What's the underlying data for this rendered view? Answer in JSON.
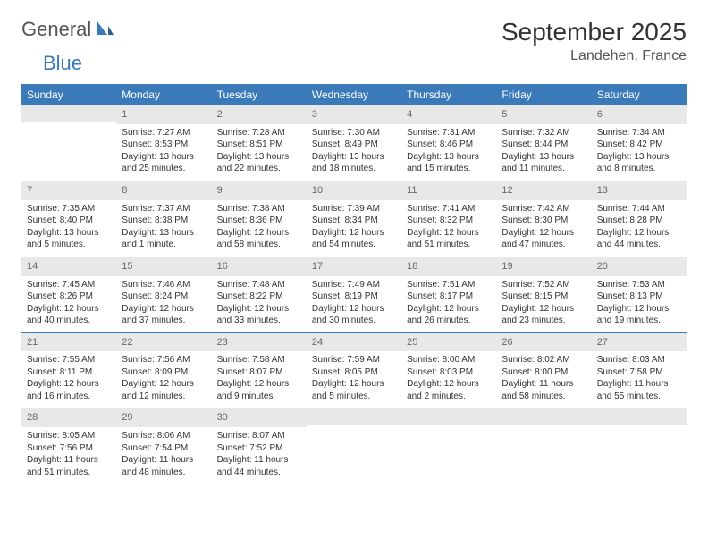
{
  "logo": {
    "general": "General",
    "blue": "Blue"
  },
  "title": "September 2025",
  "location": "Landehen, France",
  "colors": {
    "header_bg": "#3a7ab8",
    "header_fg": "#ffffff",
    "daynum_bg": "#e8e8e8",
    "daynum_fg": "#666666",
    "text": "#333333",
    "rule": "#3a7ab8"
  },
  "weekdays": [
    "Sunday",
    "Monday",
    "Tuesday",
    "Wednesday",
    "Thursday",
    "Friday",
    "Saturday"
  ],
  "weeks": [
    [
      {
        "n": "",
        "sr": "",
        "ss": "",
        "dl": ""
      },
      {
        "n": "1",
        "sr": "Sunrise: 7:27 AM",
        "ss": "Sunset: 8:53 PM",
        "dl": "Daylight: 13 hours and 25 minutes."
      },
      {
        "n": "2",
        "sr": "Sunrise: 7:28 AM",
        "ss": "Sunset: 8:51 PM",
        "dl": "Daylight: 13 hours and 22 minutes."
      },
      {
        "n": "3",
        "sr": "Sunrise: 7:30 AM",
        "ss": "Sunset: 8:49 PM",
        "dl": "Daylight: 13 hours and 18 minutes."
      },
      {
        "n": "4",
        "sr": "Sunrise: 7:31 AM",
        "ss": "Sunset: 8:46 PM",
        "dl": "Daylight: 13 hours and 15 minutes."
      },
      {
        "n": "5",
        "sr": "Sunrise: 7:32 AM",
        "ss": "Sunset: 8:44 PM",
        "dl": "Daylight: 13 hours and 11 minutes."
      },
      {
        "n": "6",
        "sr": "Sunrise: 7:34 AM",
        "ss": "Sunset: 8:42 PM",
        "dl": "Daylight: 13 hours and 8 minutes."
      }
    ],
    [
      {
        "n": "7",
        "sr": "Sunrise: 7:35 AM",
        "ss": "Sunset: 8:40 PM",
        "dl": "Daylight: 13 hours and 5 minutes."
      },
      {
        "n": "8",
        "sr": "Sunrise: 7:37 AM",
        "ss": "Sunset: 8:38 PM",
        "dl": "Daylight: 13 hours and 1 minute."
      },
      {
        "n": "9",
        "sr": "Sunrise: 7:38 AM",
        "ss": "Sunset: 8:36 PM",
        "dl": "Daylight: 12 hours and 58 minutes."
      },
      {
        "n": "10",
        "sr": "Sunrise: 7:39 AM",
        "ss": "Sunset: 8:34 PM",
        "dl": "Daylight: 12 hours and 54 minutes."
      },
      {
        "n": "11",
        "sr": "Sunrise: 7:41 AM",
        "ss": "Sunset: 8:32 PM",
        "dl": "Daylight: 12 hours and 51 minutes."
      },
      {
        "n": "12",
        "sr": "Sunrise: 7:42 AM",
        "ss": "Sunset: 8:30 PM",
        "dl": "Daylight: 12 hours and 47 minutes."
      },
      {
        "n": "13",
        "sr": "Sunrise: 7:44 AM",
        "ss": "Sunset: 8:28 PM",
        "dl": "Daylight: 12 hours and 44 minutes."
      }
    ],
    [
      {
        "n": "14",
        "sr": "Sunrise: 7:45 AM",
        "ss": "Sunset: 8:26 PM",
        "dl": "Daylight: 12 hours and 40 minutes."
      },
      {
        "n": "15",
        "sr": "Sunrise: 7:46 AM",
        "ss": "Sunset: 8:24 PM",
        "dl": "Daylight: 12 hours and 37 minutes."
      },
      {
        "n": "16",
        "sr": "Sunrise: 7:48 AM",
        "ss": "Sunset: 8:22 PM",
        "dl": "Daylight: 12 hours and 33 minutes."
      },
      {
        "n": "17",
        "sr": "Sunrise: 7:49 AM",
        "ss": "Sunset: 8:19 PM",
        "dl": "Daylight: 12 hours and 30 minutes."
      },
      {
        "n": "18",
        "sr": "Sunrise: 7:51 AM",
        "ss": "Sunset: 8:17 PM",
        "dl": "Daylight: 12 hours and 26 minutes."
      },
      {
        "n": "19",
        "sr": "Sunrise: 7:52 AM",
        "ss": "Sunset: 8:15 PM",
        "dl": "Daylight: 12 hours and 23 minutes."
      },
      {
        "n": "20",
        "sr": "Sunrise: 7:53 AM",
        "ss": "Sunset: 8:13 PM",
        "dl": "Daylight: 12 hours and 19 minutes."
      }
    ],
    [
      {
        "n": "21",
        "sr": "Sunrise: 7:55 AM",
        "ss": "Sunset: 8:11 PM",
        "dl": "Daylight: 12 hours and 16 minutes."
      },
      {
        "n": "22",
        "sr": "Sunrise: 7:56 AM",
        "ss": "Sunset: 8:09 PM",
        "dl": "Daylight: 12 hours and 12 minutes."
      },
      {
        "n": "23",
        "sr": "Sunrise: 7:58 AM",
        "ss": "Sunset: 8:07 PM",
        "dl": "Daylight: 12 hours and 9 minutes."
      },
      {
        "n": "24",
        "sr": "Sunrise: 7:59 AM",
        "ss": "Sunset: 8:05 PM",
        "dl": "Daylight: 12 hours and 5 minutes."
      },
      {
        "n": "25",
        "sr": "Sunrise: 8:00 AM",
        "ss": "Sunset: 8:03 PM",
        "dl": "Daylight: 12 hours and 2 minutes."
      },
      {
        "n": "26",
        "sr": "Sunrise: 8:02 AM",
        "ss": "Sunset: 8:00 PM",
        "dl": "Daylight: 11 hours and 58 minutes."
      },
      {
        "n": "27",
        "sr": "Sunrise: 8:03 AM",
        "ss": "Sunset: 7:58 PM",
        "dl": "Daylight: 11 hours and 55 minutes."
      }
    ],
    [
      {
        "n": "28",
        "sr": "Sunrise: 8:05 AM",
        "ss": "Sunset: 7:56 PM",
        "dl": "Daylight: 11 hours and 51 minutes."
      },
      {
        "n": "29",
        "sr": "Sunrise: 8:06 AM",
        "ss": "Sunset: 7:54 PM",
        "dl": "Daylight: 11 hours and 48 minutes."
      },
      {
        "n": "30",
        "sr": "Sunrise: 8:07 AM",
        "ss": "Sunset: 7:52 PM",
        "dl": "Daylight: 11 hours and 44 minutes."
      },
      {
        "n": "",
        "sr": "",
        "ss": "",
        "dl": ""
      },
      {
        "n": "",
        "sr": "",
        "ss": "",
        "dl": ""
      },
      {
        "n": "",
        "sr": "",
        "ss": "",
        "dl": ""
      },
      {
        "n": "",
        "sr": "",
        "ss": "",
        "dl": ""
      }
    ]
  ]
}
